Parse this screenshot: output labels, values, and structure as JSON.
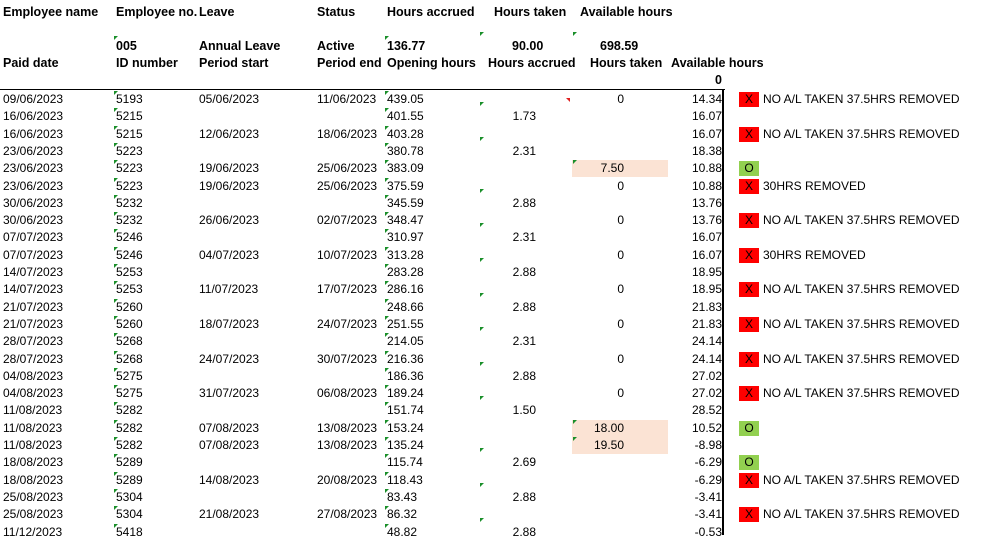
{
  "headers": {
    "row1": [
      "Employee name",
      "Employee no.",
      "Leave",
      "Status",
      "Hours accrued",
      "Hours taken",
      "Available hours"
    ],
    "row2": [
      "",
      "005",
      "Annual Leave",
      "Active",
      "136.77",
      "90.00",
      "698.59"
    ],
    "row3": [
      "Paid date",
      "ID number",
      "Period start",
      "Period end",
      "Opening hours",
      "Hours accrued",
      "Hours taken",
      "Available hours"
    ],
    "row4_avail": "0"
  },
  "rows": [
    {
      "paid": "09/06/2023",
      "id": "5193",
      "start": "05/06/2023",
      "end": "11/06/2023",
      "open": "439.05",
      "accr": "",
      "taken": "0",
      "avail": "14.34",
      "mark": "X",
      "note": "NO A/L TAKEN 37.5HRS REMOVED"
    },
    {
      "paid": "16/06/2023",
      "id": "5215",
      "start": "",
      "end": "",
      "open": "401.55",
      "accr": "1.73",
      "taken": "",
      "avail": "16.07",
      "mark": "",
      "note": ""
    },
    {
      "paid": "16/06/2023",
      "id": "5215",
      "start": "12/06/2023",
      "end": "18/06/2023",
      "open": "403.28",
      "accr": "",
      "taken": "",
      "avail": "16.07",
      "mark": "X",
      "note": "NO A/L TAKEN 37.5HRS REMOVED"
    },
    {
      "paid": "23/06/2023",
      "id": "5223",
      "start": "",
      "end": "",
      "open": "380.78",
      "accr": "2.31",
      "taken": "",
      "avail": "18.38",
      "mark": "",
      "note": ""
    },
    {
      "paid": "23/06/2023",
      "id": "5223",
      "start": "19/06/2023",
      "end": "25/06/2023",
      "open": "383.09",
      "accr": "",
      "taken": "7.50",
      "avail": "10.88",
      "mark": "O",
      "note": ""
    },
    {
      "paid": "23/06/2023",
      "id": "5223",
      "start": "19/06/2023",
      "end": "25/06/2023",
      "open": "375.59",
      "accr": "",
      "taken": "0",
      "avail": "10.88",
      "mark": "X",
      "note": "30HRS REMOVED"
    },
    {
      "paid": "30/06/2023",
      "id": "5232",
      "start": "",
      "end": "",
      "open": "345.59",
      "accr": "2.88",
      "taken": "",
      "avail": "13.76",
      "mark": "",
      "note": ""
    },
    {
      "paid": "30/06/2023",
      "id": "5232",
      "start": "26/06/2023",
      "end": "02/07/2023",
      "open": "348.47",
      "accr": "",
      "taken": "0",
      "avail": "13.76",
      "mark": "X",
      "note": "NO A/L TAKEN 37.5HRS REMOVED"
    },
    {
      "paid": "07/07/2023",
      "id": "5246",
      "start": "",
      "end": "",
      "open": "310.97",
      "accr": "2.31",
      "taken": "",
      "avail": "16.07",
      "mark": "",
      "note": ""
    },
    {
      "paid": "07/07/2023",
      "id": "5246",
      "start": "04/07/2023",
      "end": "10/07/2023",
      "open": "313.28",
      "accr": "",
      "taken": "0",
      "avail": "16.07",
      "mark": "X",
      "note": "30HRS REMOVED"
    },
    {
      "paid": "14/07/2023",
      "id": "5253",
      "start": "",
      "end": "",
      "open": "283.28",
      "accr": "2.88",
      "taken": "",
      "avail": "18.95",
      "mark": "",
      "note": ""
    },
    {
      "paid": "14/07/2023",
      "id": "5253",
      "start": "11/07/2023",
      "end": "17/07/2023",
      "open": "286.16",
      "accr": "",
      "taken": "0",
      "avail": "18.95",
      "mark": "X",
      "note": "NO A/L TAKEN 37.5HRS REMOVED"
    },
    {
      "paid": "21/07/2023",
      "id": "5260",
      "start": "",
      "end": "",
      "open": "248.66",
      "accr": "2.88",
      "taken": "",
      "avail": "21.83",
      "mark": "",
      "note": ""
    },
    {
      "paid": "21/07/2023",
      "id": "5260",
      "start": "18/07/2023",
      "end": "24/07/2023",
      "open": "251.55",
      "accr": "",
      "taken": "0",
      "avail": "21.83",
      "mark": "X",
      "note": "NO A/L TAKEN 37.5HRS REMOVED"
    },
    {
      "paid": "28/07/2023",
      "id": "5268",
      "start": "",
      "end": "",
      "open": "214.05",
      "accr": "2.31",
      "taken": "",
      "avail": "24.14",
      "mark": "",
      "note": ""
    },
    {
      "paid": "28/07/2023",
      "id": "5268",
      "start": "24/07/2023",
      "end": "30/07/2023",
      "open": "216.36",
      "accr": "",
      "taken": "0",
      "avail": "24.14",
      "mark": "X",
      "note": "NO A/L TAKEN 37.5HRS REMOVED"
    },
    {
      "paid": "04/08/2023",
      "id": "5275",
      "start": "",
      "end": "",
      "open": "186.36",
      "accr": "2.88",
      "taken": "",
      "avail": "27.02",
      "mark": "",
      "note": ""
    },
    {
      "paid": "04/08/2023",
      "id": "5275",
      "start": "31/07/2023",
      "end": "06/08/2023",
      "open": "189.24",
      "accr": "",
      "taken": "0",
      "avail": "27.02",
      "mark": "X",
      "note": "NO A/L TAKEN 37.5HRS REMOVED"
    },
    {
      "paid": "11/08/2023",
      "id": "5282",
      "start": "",
      "end": "",
      "open": "151.74",
      "accr": "1.50",
      "taken": "",
      "avail": "28.52",
      "mark": "",
      "note": ""
    },
    {
      "paid": "11/08/2023",
      "id": "5282",
      "start": "07/08/2023",
      "end": "13/08/2023",
      "open": "153.24",
      "accr": "",
      "taken": "18.00",
      "avail": "10.52",
      "mark": "O",
      "note": ""
    },
    {
      "paid": "11/08/2023",
      "id": "5282",
      "start": "07/08/2023",
      "end": "13/08/2023",
      "open": "135.24",
      "accr": "",
      "taken": "19.50",
      "avail": "-8.98",
      "mark": "",
      "note": ""
    },
    {
      "paid": "18/08/2023",
      "id": "5289",
      "start": "",
      "end": "",
      "open": "115.74",
      "accr": "2.69",
      "taken": "",
      "avail": "-6.29",
      "mark": "O",
      "note": ""
    },
    {
      "paid": "18/08/2023",
      "id": "5289",
      "start": "14/08/2023",
      "end": "20/08/2023",
      "open": "118.43",
      "accr": "",
      "taken": "",
      "avail": "-6.29",
      "mark": "X",
      "note": "NO A/L TAKEN 37.5HRS REMOVED"
    },
    {
      "paid": "25/08/2023",
      "id": "5304",
      "start": "",
      "end": "",
      "open": "83.43",
      "accr": "2.88",
      "taken": "",
      "avail": "-3.41",
      "mark": "",
      "note": ""
    },
    {
      "paid": "25/08/2023",
      "id": "5304",
      "start": "21/08/2023",
      "end": "27/08/2023",
      "open": "86.32",
      "accr": "",
      "taken": "",
      "avail": "-3.41",
      "mark": "X",
      "note": "NO A/L TAKEN 37.5HRS REMOVED"
    },
    {
      "paid": "11/12/2023",
      "id": "5418",
      "start": "",
      "end": "",
      "open": "48.82",
      "accr": "2.88",
      "taken": "",
      "avail": "-0.53",
      "mark": "",
      "note": ""
    }
  ],
  "highlight_color": "#fbe3d4",
  "mark_x_color": "#ff0000",
  "mark_o_color": "#92d050",
  "comment_triangle_color": "#1a8f2a"
}
